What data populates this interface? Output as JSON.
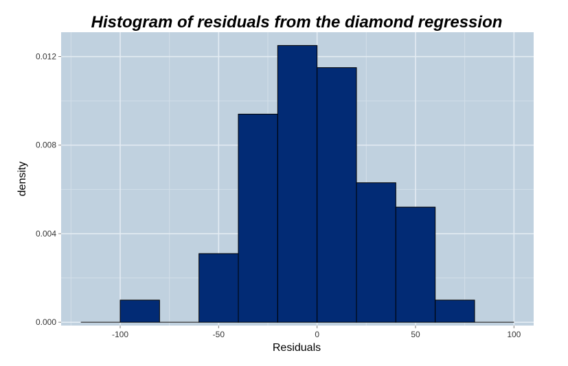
{
  "chart_data": {
    "type": "bar",
    "title": "Histogram of residuals from the diamond regression",
    "xlabel": "Residuals",
    "ylabel": "density",
    "bin_width": 20,
    "bins": [
      {
        "start": -120,
        "end": -100,
        "value": 0.0
      },
      {
        "start": -100,
        "end": -80,
        "value": 0.001
      },
      {
        "start": -80,
        "end": -60,
        "value": 0.0
      },
      {
        "start": -60,
        "end": -40,
        "value": 0.0031
      },
      {
        "start": -40,
        "end": -20,
        "value": 0.0094
      },
      {
        "start": -20,
        "end": 0,
        "value": 0.0125
      },
      {
        "start": 0,
        "end": 20,
        "value": 0.0115
      },
      {
        "start": 20,
        "end": 40,
        "value": 0.0063
      },
      {
        "start": 40,
        "end": 60,
        "value": 0.0052
      },
      {
        "start": 60,
        "end": 80,
        "value": 0.001
      },
      {
        "start": 80,
        "end": 100,
        "value": 0.0
      }
    ],
    "xlim": [
      -130,
      110
    ],
    "ylim": [
      -0.00015,
      0.0131
    ],
    "x_ticks": [
      -100,
      -50,
      0,
      50,
      100
    ],
    "x_tick_labels": [
      "-100",
      "-50",
      "0",
      "50",
      "100"
    ],
    "y_ticks": [
      0.0,
      0.004,
      0.008,
      0.012
    ],
    "y_tick_labels": [
      "0.000",
      "0.004",
      "0.008",
      "0.012"
    ],
    "x_minor_ticks": [
      -125,
      -75,
      -25,
      25,
      75
    ],
    "y_minor_ticks": [
      0.002,
      0.006,
      0.01
    ],
    "grid": true,
    "colors": {
      "panel_background": "#c0d1df",
      "grid_major": "#e4ecf3",
      "grid_minor": "#d3dfe9",
      "bar_fill": "#022b75",
      "bar_outline": "#000000"
    }
  }
}
